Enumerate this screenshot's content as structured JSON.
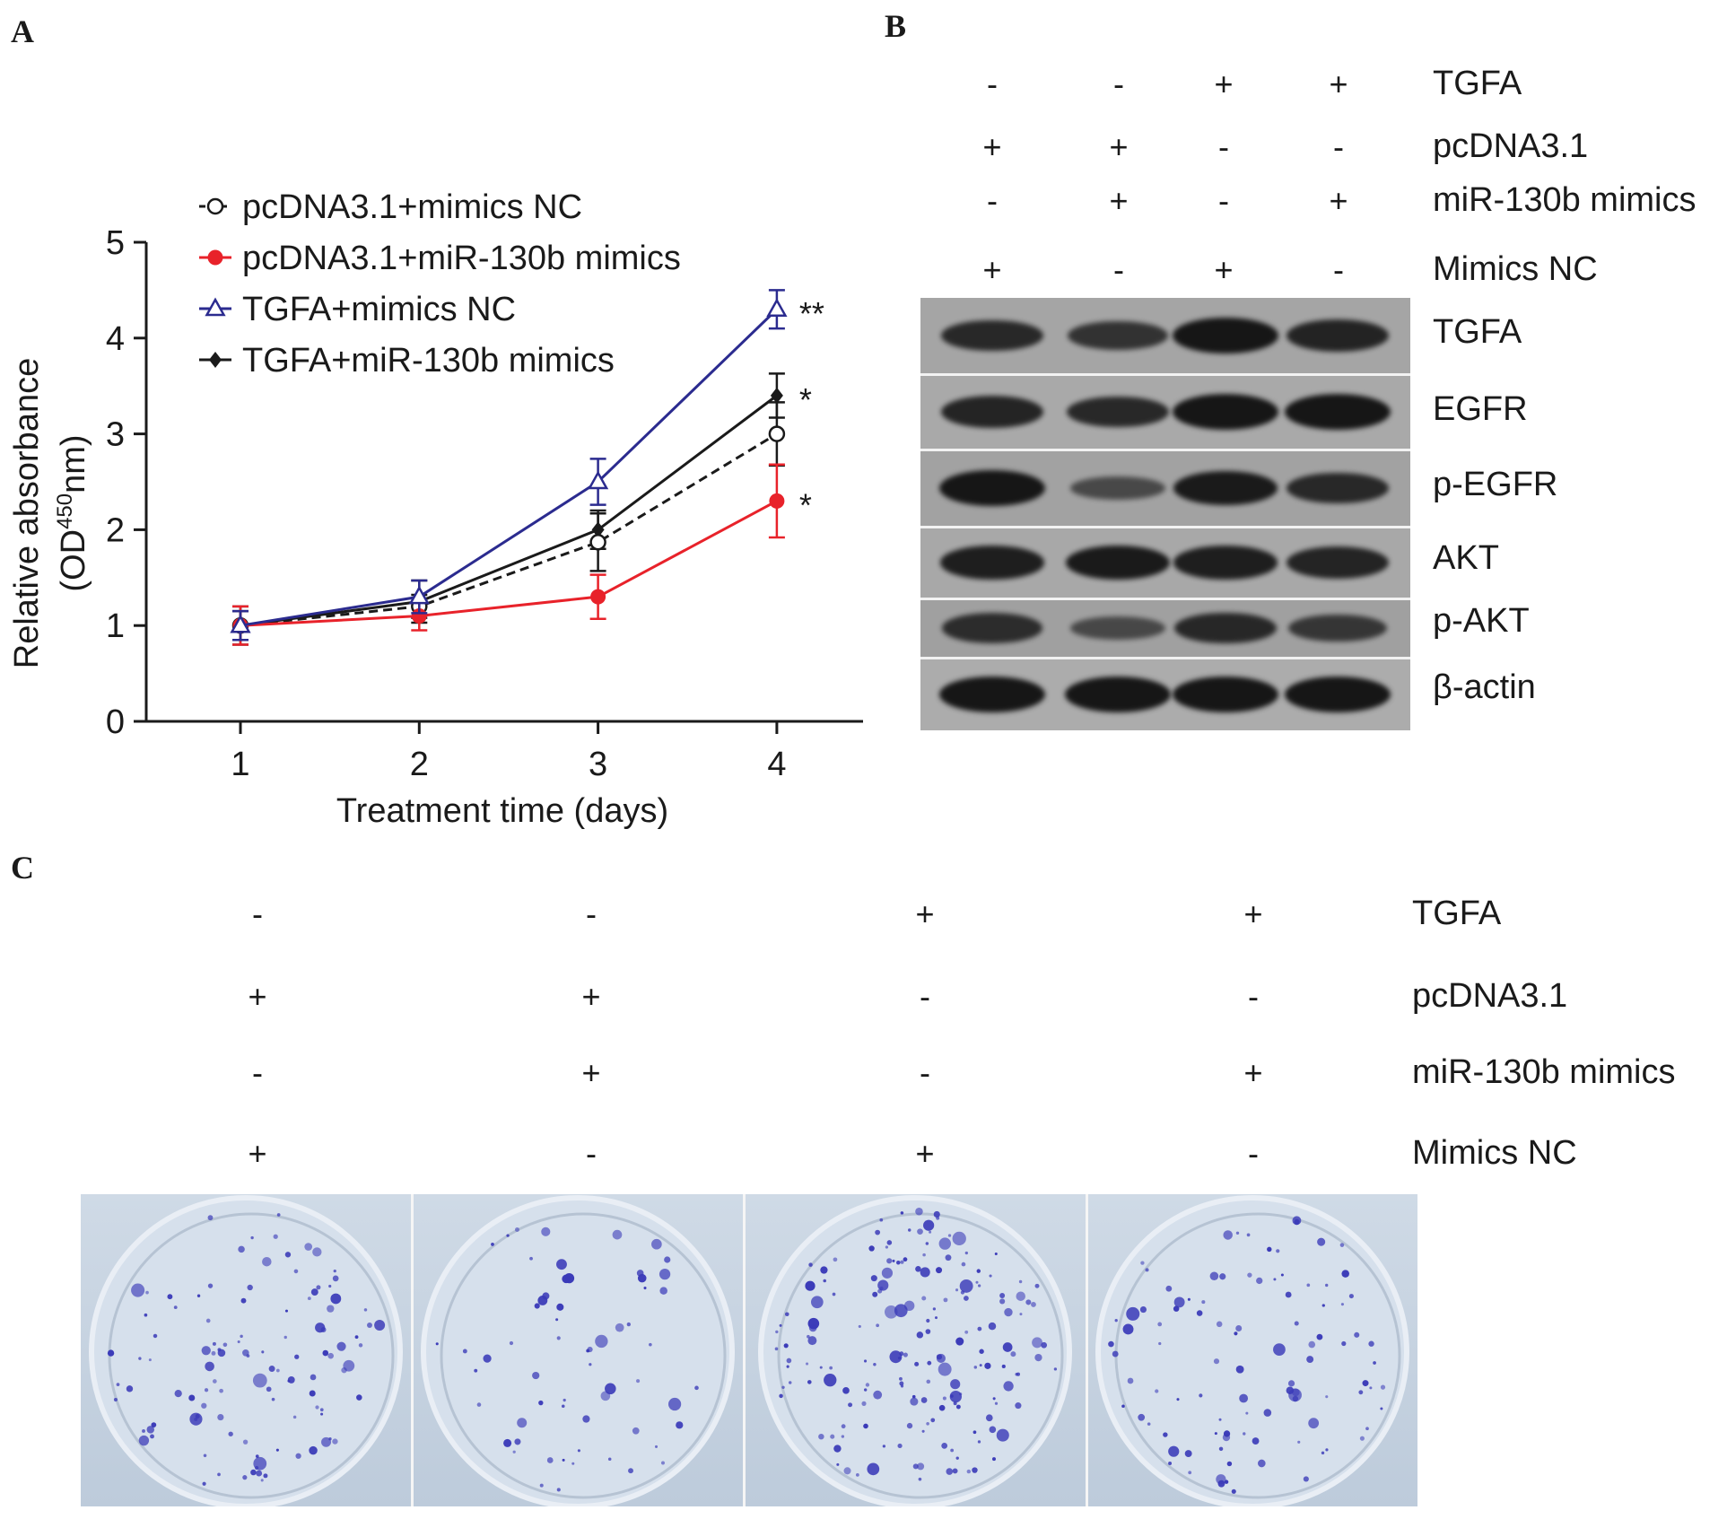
{
  "panels": {
    "a": "A",
    "b": "B",
    "c": "C"
  },
  "chart_data": {
    "type": "line",
    "title": "",
    "xlabel": "Treatment time (days)",
    "ylabel_line1": "Relative absorbance",
    "ylabel_line2": "(OD",
    "ylabel_sup": "450",
    "ylabel_line2_end": "nm)",
    "x": [
      1,
      2,
      3,
      4
    ],
    "x_ticks": [
      "1",
      "2",
      "3",
      "4"
    ],
    "y_ticks": [
      "0",
      "1",
      "2",
      "3",
      "4",
      "5"
    ],
    "ylim": [
      0,
      5
    ],
    "legend_position": "top-left",
    "series": [
      {
        "name": "pcDNA3.1+mimics NC",
        "values": [
          1.0,
          1.2,
          1.87,
          3.0
        ],
        "errors": [
          0.15,
          0.12,
          0.3,
          0.33
        ],
        "color": "#1a1a1a",
        "marker": "open-circle",
        "dashed": true,
        "sig": ""
      },
      {
        "name": "pcDNA3.1+miR-130b mimics",
        "values": [
          1.0,
          1.1,
          1.3,
          2.3
        ],
        "errors": [
          0.2,
          0.15,
          0.23,
          0.38
        ],
        "color": "#e8222a",
        "marker": "filled-circle",
        "dashed": false,
        "sig": "*"
      },
      {
        "name": "TGFA+mimics NC",
        "values": [
          1.0,
          1.3,
          2.5,
          4.3
        ],
        "errors": [
          0.15,
          0.17,
          0.24,
          0.2
        ],
        "color": "#2b2b8f",
        "marker": "open-triangle",
        "dashed": false,
        "sig": "**"
      },
      {
        "name": "TGFA+miR-130b mimics",
        "values": [
          1.0,
          1.25,
          2.0,
          3.4
        ],
        "errors": [
          0.2,
          0.22,
          0.2,
          0.23
        ],
        "color": "#1a1a1a",
        "marker": "filled-diamond",
        "dashed": false,
        "sig": "*"
      }
    ]
  },
  "blot": {
    "conditions": [
      {
        "label": "TGFA",
        "signs": [
          "-",
          "-",
          "+",
          "+"
        ]
      },
      {
        "label": "pcDNA3.1",
        "signs": [
          "+",
          "+",
          "-",
          "-"
        ]
      },
      {
        "label": "miR-130b mimics",
        "signs": [
          "-",
          "+",
          "-",
          "+"
        ]
      },
      {
        "label": "Mimics NC",
        "signs": [
          "+",
          "-",
          "+",
          "-"
        ]
      }
    ],
    "rows": [
      {
        "label": "TGFA",
        "intensity": [
          0.8,
          0.7,
          1.0,
          0.85
        ]
      },
      {
        "label": "EGFR",
        "intensity": [
          0.85,
          0.8,
          1.0,
          1.0
        ]
      },
      {
        "label": "p-EGFR",
        "intensity": [
          1.0,
          0.45,
          0.95,
          0.8
        ]
      },
      {
        "label": "AKT",
        "intensity": [
          0.9,
          0.95,
          0.9,
          0.85
        ]
      },
      {
        "label": "p-AKT",
        "intensity": [
          0.75,
          0.45,
          0.8,
          0.65
        ]
      },
      {
        "label": "β-actin",
        "intensity": [
          1.0,
          1.0,
          1.0,
          1.0
        ]
      }
    ]
  },
  "colony": {
    "conditions": [
      {
        "label": "TGFA",
        "signs": [
          "-",
          "-",
          "+",
          "+"
        ]
      },
      {
        "label": "pcDNA3.1",
        "signs": [
          "+",
          "+",
          "-",
          "-"
        ]
      },
      {
        "label": "miR-130b mimics",
        "signs": [
          "-",
          "+",
          "-",
          "+"
        ]
      },
      {
        "label": "Mimics NC",
        "signs": [
          "+",
          "-",
          "+",
          "-"
        ]
      }
    ],
    "colony_density": [
      1.0,
      0.55,
      1.6,
      0.9
    ]
  }
}
